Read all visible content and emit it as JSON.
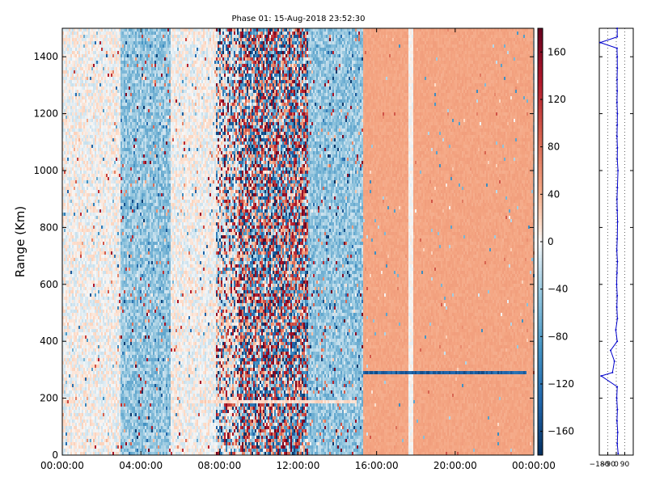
{
  "figure": {
    "title": "Phase 01: 15-Aug-2018 23:52:30"
  },
  "chart_data": [
    {
      "type": "heatmap",
      "title": "Phase 01: 15-Aug-2018 23:52:30",
      "xlabel": "",
      "ylabel": "Range (Km)",
      "xlim_hours": [
        0,
        24
      ],
      "ylim": [
        0,
        1500
      ],
      "x_tick_labels": [
        "00:00:00",
        "04:00:00",
        "08:00:00",
        "12:00:00",
        "16:00:00",
        "20:00:00",
        "00:00:00"
      ],
      "y_ticks": [
        0,
        200,
        400,
        600,
        800,
        1000,
        1200,
        1400
      ],
      "colorbar": {
        "colormap": "RdBu_r",
        "range": [
          -180,
          180
        ],
        "ticks": [
          -160,
          -120,
          -80,
          -40,
          0,
          40,
          80,
          120,
          160
        ]
      },
      "time_bands": [
        {
          "start": "00:00:00",
          "end": "03:00:00",
          "pattern": "light noise, near 0"
        },
        {
          "start": "03:00:00",
          "end": "05:30:00",
          "pattern": "mostly negative, about -50"
        },
        {
          "start": "05:30:00",
          "end": "07:50:00",
          "pattern": "light noise, near 0"
        },
        {
          "start": "07:50:00",
          "end": "09:00:00",
          "pattern": "scattered, +/-180"
        },
        {
          "start": "09:00:00",
          "end": "12:30:00",
          "pattern": "random, +/-180"
        },
        {
          "start": "12:30:00",
          "end": "15:20:00",
          "pattern": "mostly negative, about -40"
        },
        {
          "start": "15:20:00",
          "end": "17:35:00",
          "pattern": "uniform, about 45"
        },
        {
          "start": "17:35:00",
          "end": "17:50:00",
          "pattern": "near 0"
        },
        {
          "start": "17:50:00",
          "end": "00:00:00",
          "pattern": "uniform, about 45"
        }
      ],
      "range_features": [
        {
          "range_km": 290,
          "start": "15:20:00",
          "end": "23:40:00",
          "pattern": "strong negative gate"
        },
        {
          "range_km": 185,
          "start": "07:00:00",
          "end": "15:00:00",
          "pattern": "low-intensity band"
        }
      ]
    },
    {
      "type": "line",
      "title": "",
      "xlabel": "",
      "ylabel": "",
      "x_tick_labels": [
        "−180",
        "−90",
        "0",
        "90"
      ],
      "xlim": [
        -180,
        180
      ],
      "ylim": [
        0,
        1500
      ],
      "y_ticks": [
        0,
        200,
        400,
        600,
        800,
        1000,
        1200,
        1400
      ],
      "grid": true,
      "series_color": "#0000cc",
      "profile": [
        [
          20,
          5
        ],
        [
          10,
          40
        ],
        [
          15,
          80
        ],
        [
          8,
          120
        ],
        [
          12,
          160
        ],
        [
          5,
          200
        ],
        [
          10,
          240
        ],
        [
          -160,
          278
        ],
        [
          -40,
          290
        ],
        [
          -20,
          330
        ],
        [
          -60,
          368
        ],
        [
          10,
          400
        ],
        [
          -5,
          440
        ],
        [
          12,
          480
        ],
        [
          6,
          520
        ],
        [
          10,
          560
        ],
        [
          4,
          600
        ],
        [
          8,
          640
        ],
        [
          12,
          680
        ],
        [
          6,
          720
        ],
        [
          10,
          760
        ],
        [
          14,
          820
        ],
        [
          10,
          860
        ],
        [
          8,
          900
        ],
        [
          12,
          940
        ],
        [
          18,
          1000
        ],
        [
          10,
          1040
        ],
        [
          12,
          1080
        ],
        [
          8,
          1120
        ],
        [
          10,
          1160
        ],
        [
          12,
          1200
        ],
        [
          8,
          1240
        ],
        [
          10,
          1280
        ],
        [
          9,
          1320
        ],
        [
          11,
          1360
        ],
        [
          10,
          1400
        ],
        [
          8,
          1430
        ],
        [
          -170,
          1450
        ],
        [
          10,
          1470
        ],
        [
          10,
          1500
        ]
      ]
    }
  ]
}
